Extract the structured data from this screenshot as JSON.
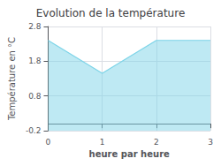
{
  "chart_data": {
    "type": "area",
    "title": "Evolution de la température",
    "xlabel": "heure par heure",
    "ylabel": "Température en °C",
    "x": [
      0,
      1,
      2,
      3
    ],
    "values": [
      2.4,
      1.45,
      2.4,
      2.4
    ],
    "color": "#7dd4e8",
    "xlim": [
      0,
      3
    ],
    "xticks": [
      0,
      1,
      2,
      3
    ],
    "ylim": [
      -0.2,
      2.8
    ],
    "yticks": [
      -0.2,
      0.8,
      1.8,
      2.8
    ],
    "grid": true
  }
}
